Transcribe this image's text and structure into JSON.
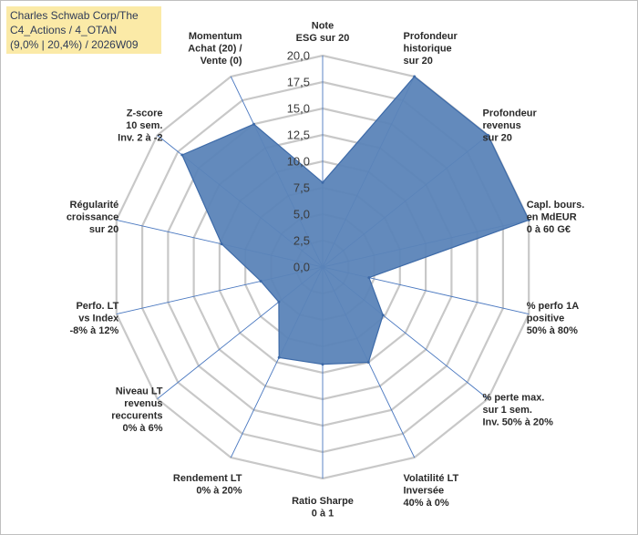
{
  "title_lines": [
    "Charles Schwab Corp/The",
    "C4_Actions / 4_OTAN",
    "(9,0% | 20,4%) / 2026W09"
  ],
  "colors": {
    "fill": "#5b84b8",
    "stroke": "#3d6aa8",
    "grid": "#c8c8c8",
    "spoke": "#4a78c0",
    "title_bg": "#fbeaa7"
  },
  "chart_data": {
    "type": "radar",
    "title": "Charles Schwab Corp/The C4_Actions / 4_OTAN (9,0% | 20,4%) / 2026W09",
    "rmin": 0,
    "rmax": 20,
    "ticks": [
      "0,0",
      "2,5",
      "5,0",
      "7,5",
      "10,0",
      "12,5",
      "15,0",
      "17,5",
      "20,0"
    ],
    "axes": [
      {
        "label": [
          "Note",
          "ESG sur 20"
        ],
        "value": 8.0
      },
      {
        "label": [
          "Profondeur",
          "historique",
          "sur 20"
        ],
        "value": 20.0
      },
      {
        "label": [
          "Profondeur",
          "revenus",
          "sur 20"
        ],
        "value": 20.0
      },
      {
        "label": [
          "Capl. bours.",
          "en MdEUR",
          "0 à 60 G€"
        ],
        "value": 20.0
      },
      {
        "label": [
          "% perfo 1A",
          "positive",
          "50% à 80%"
        ],
        "value": 4.5
      },
      {
        "label": [
          "% perte max.",
          "sur 1 sem.",
          "Inv. 50% à 20%"
        ],
        "value": 7.3
      },
      {
        "label": [
          "Volatilité LT",
          "Inversée",
          "40% à 0%"
        ],
        "value": 10.0
      },
      {
        "label": [
          "Ratio Sharpe",
          "0 à 1"
        ],
        "value": 9.2
      },
      {
        "label": [
          "Rendement LT",
          "0% à 20%"
        ],
        "value": 9.5
      },
      {
        "label": [
          "Niveau LT",
          "revenus",
          "reccurents",
          "0% à 6%"
        ],
        "value": 5.3
      },
      {
        "label": [
          "Perfo. LT",
          "vs Index",
          "-8% à 12%"
        ],
        "value": 6.0
      },
      {
        "label": [
          "Régularité",
          "croissance",
          "sur 20"
        ],
        "value": 9.8
      },
      {
        "label": [
          "Z-score",
          "10 sem.",
          "Inv. 2 à -2"
        ],
        "value": 17.0
      },
      {
        "label": [
          "Momentum",
          "Achat (20) /",
          "Vente (0)"
        ],
        "value": 15.0
      }
    ]
  }
}
